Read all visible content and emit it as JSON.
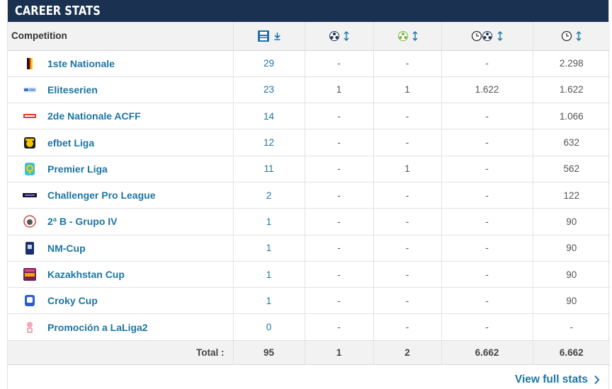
{
  "header": {
    "title": "CAREER STATS"
  },
  "table": {
    "columns": {
      "competition": "Competition",
      "appearances_icon": "appearances-icon",
      "goals_icon": "goals-icon",
      "assists_icon": "assists-icon",
      "minutes_per_goal_icon": "minutes-per-goal-icon",
      "minutes_icon": "minutes-played-icon"
    },
    "rows": [
      {
        "logo": "belgium-1ste-nationale-logo",
        "name": "1ste Nationale",
        "apps": "29",
        "goals": "-",
        "assists": "-",
        "min_per_goal": "-",
        "minutes": "2.298"
      },
      {
        "logo": "eliteserien-logo",
        "name": "Eliteserien",
        "apps": "23",
        "goals": "1",
        "assists": "1",
        "min_per_goal": "1.622",
        "minutes": "1.622"
      },
      {
        "logo": "acff-logo",
        "name": "2de Nationale ACFF",
        "apps": "14",
        "goals": "-",
        "assists": "-",
        "min_per_goal": "-",
        "minutes": "1.066"
      },
      {
        "logo": "efbet-liga-logo",
        "name": "efbet Liga",
        "apps": "12",
        "goals": "-",
        "assists": "-",
        "min_per_goal": "-",
        "minutes": "632"
      },
      {
        "logo": "premier-liga-logo",
        "name": "Premier Liga",
        "apps": "11",
        "goals": "-",
        "assists": "1",
        "min_per_goal": "-",
        "minutes": "562"
      },
      {
        "logo": "challenger-pro-league-logo",
        "name": "Challenger Pro League",
        "apps": "2",
        "goals": "-",
        "assists": "-",
        "min_per_goal": "-",
        "minutes": "122"
      },
      {
        "logo": "segunda-b-logo",
        "name": "2ª B - Grupo IV",
        "apps": "1",
        "goals": "-",
        "assists": "-",
        "min_per_goal": "-",
        "minutes": "90"
      },
      {
        "logo": "nm-cup-logo",
        "name": "NM-Cup",
        "apps": "1",
        "goals": "-",
        "assists": "-",
        "min_per_goal": "-",
        "minutes": "90"
      },
      {
        "logo": "kazakhstan-cup-logo",
        "name": "Kazakhstan Cup",
        "apps": "1",
        "goals": "-",
        "assists": "-",
        "min_per_goal": "-",
        "minutes": "90"
      },
      {
        "logo": "croky-cup-logo",
        "name": "Croky Cup",
        "apps": "1",
        "goals": "-",
        "assists": "-",
        "min_per_goal": "-",
        "minutes": "90"
      },
      {
        "logo": "promocion-laliga2-logo",
        "name": "Promoción a LaLiga2",
        "apps": "0",
        "goals": "-",
        "assists": "-",
        "min_per_goal": "-",
        "minutes": "-"
      }
    ],
    "totals": {
      "label": "Total :",
      "apps": "95",
      "goals": "1",
      "assists": "2",
      "min_per_goal": "6.662",
      "minutes": "6.662"
    }
  },
  "footer": {
    "link_label": "View full stats"
  },
  "colors": {
    "header_bg": "#1a3151",
    "link": "#1d75a3",
    "header_row_bg": "#f2f2f2"
  }
}
